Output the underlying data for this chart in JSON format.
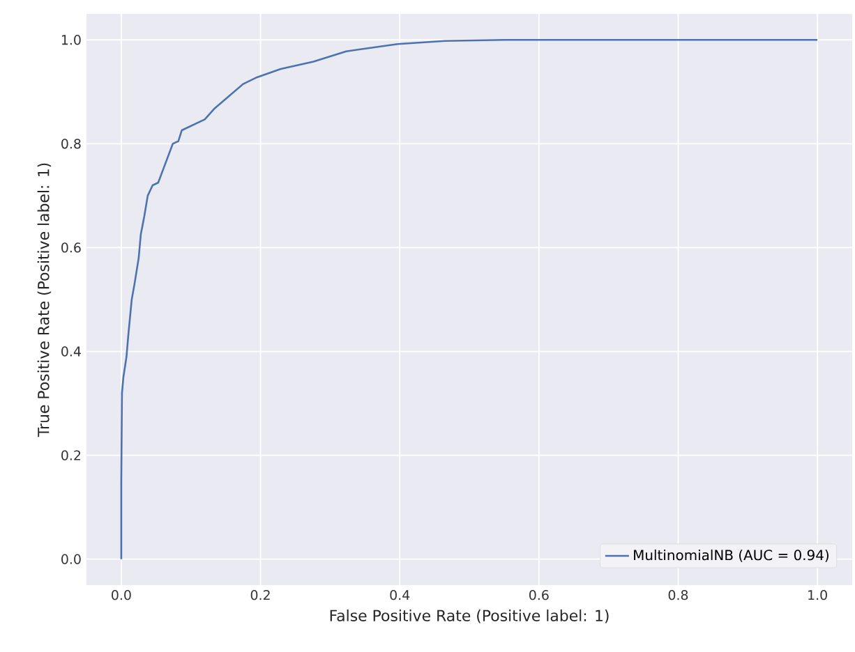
{
  "chart_data": {
    "type": "line",
    "xlabel": "False Positive Rate (Positive label: 1)",
    "ylabel": "True Positive Rate (Positive label: 1)",
    "xlim": [
      -0.05,
      1.05
    ],
    "ylim": [
      -0.05,
      1.05
    ],
    "xticks": [
      {
        "value": 0,
        "label": "0.0"
      },
      {
        "value": 0.2,
        "label": "0.2"
      },
      {
        "value": 0.4,
        "label": "0.4"
      },
      {
        "value": 0.6,
        "label": "0.6"
      },
      {
        "value": 0.8,
        "label": "0.8"
      },
      {
        "value": 1,
        "label": "1.0"
      }
    ],
    "yticks": [
      {
        "value": 0,
        "label": "0.0"
      },
      {
        "value": 0.2,
        "label": "0.2"
      },
      {
        "value": 0.4,
        "label": "0.4"
      },
      {
        "value": 0.6,
        "label": "0.6"
      },
      {
        "value": 0.8,
        "label": "0.8"
      },
      {
        "value": 1,
        "label": "1.0"
      }
    ],
    "grid": true,
    "legend": "bottom right",
    "series": [
      {
        "name": "MultinomialNB (AUC = 0.94)",
        "color": "#4c72b0",
        "x": [
          0,
          0,
          0.001,
          0.003,
          0.0075,
          0.01,
          0.015,
          0.019,
          0.025,
          0.028,
          0.033,
          0.038,
          0.045,
          0.053,
          0.06,
          0.067,
          0.074,
          0.082,
          0.087,
          0.12,
          0.134,
          0.155,
          0.175,
          0.195,
          0.229,
          0.276,
          0.323,
          0.397,
          0.465,
          0.55,
          1.0
        ],
        "values": [
          0,
          0.15,
          0.32,
          0.35,
          0.39,
          0.43,
          0.5,
          0.53,
          0.58,
          0.625,
          0.66,
          0.7,
          0.72,
          0.725,
          0.75,
          0.775,
          0.8,
          0.805,
          0.826,
          0.847,
          0.868,
          0.892,
          0.915,
          0.928,
          0.944,
          0.958,
          0.978,
          0.992,
          0.998,
          1.0,
          1.0
        ]
      }
    ]
  }
}
